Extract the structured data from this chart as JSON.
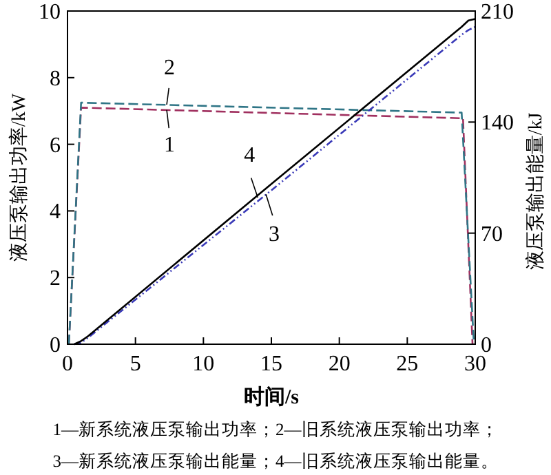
{
  "chart_data": {
    "type": "line",
    "xlabel": "时间/s",
    "ylabel": "液压泵输出功率/kW",
    "y2label": "液压泵输出能量/kJ",
    "xlim": [
      0,
      30
    ],
    "xticks": [
      0,
      5,
      10,
      15,
      20,
      25,
      30
    ],
    "ylim": [
      0,
      10
    ],
    "yticks": [
      0,
      2,
      4,
      6,
      8,
      10
    ],
    "y2lim": [
      0,
      210
    ],
    "y2ticks": [
      0,
      70,
      140,
      210
    ],
    "grid": false,
    "marker": "none",
    "series": [
      {
        "color": "#a0305f",
        "line_style": "dashed",
        "x": [
          0.1,
          1.0,
          29.1,
          29.8
        ],
        "values": [
          0,
          7.1,
          6.78,
          0
        ]
      },
      {
        "color": "#2f7586",
        "line_style": "dashed",
        "x": [
          0.1,
          1.0,
          29.0,
          29.9
        ],
        "values": [
          0,
          7.25,
          6.95,
          0
        ]
      },
      {
        "color": "#3a3ab8",
        "line_style": "dotted",
        "axis": "y2",
        "x": [
          0.5,
          1.0,
          1.5,
          15,
          29,
          29.5,
          30
        ],
        "values": [
          0,
          1,
          4,
          97,
          195,
          198,
          200
        ]
      },
      {
        "color": "#000000",
        "line_style": "solid",
        "axis": "y2",
        "x": [
          0.5,
          1.0,
          1.5,
          15,
          29,
          29.5,
          30
        ],
        "values": [
          0,
          2,
          5,
          101,
          200,
          204,
          205
        ]
      }
    ],
    "annotations": [
      {
        "text": "1",
        "x": 7.3,
        "y": 7.03
      },
      {
        "text": "2",
        "x": 7.3,
        "y": 7.19
      },
      {
        "text": "4",
        "x": 14.0,
        "y": 4.4
      },
      {
        "text": "3",
        "x": 14.6,
        "y": 4.5
      },
      "1—新系统液压泵输出功率；2—旧系统液压泵输出功率；",
      "3—新系统液压泵输出能量；4—旧系统液压泵输出能量。"
    ]
  }
}
